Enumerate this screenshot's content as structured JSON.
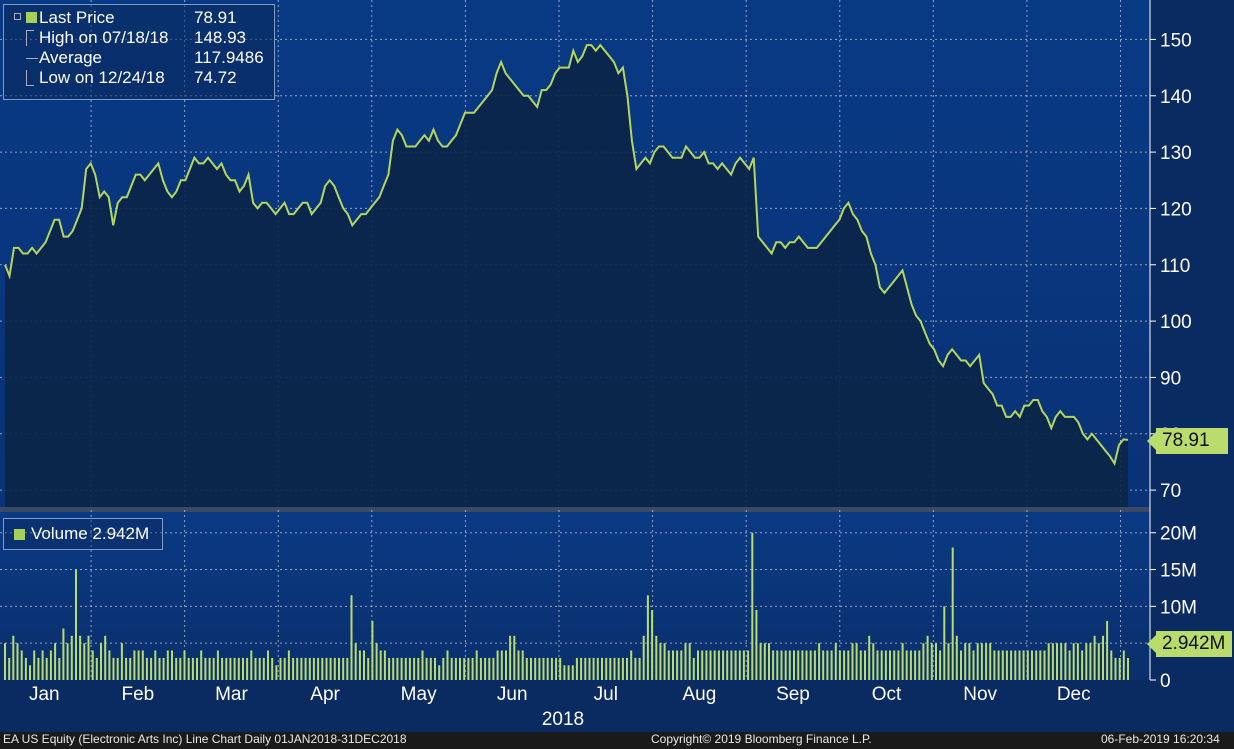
{
  "legend": {
    "last_price_label": "Last Price",
    "last_price_value": "78.91",
    "high_label": "High on 07/18/18",
    "high_value": "148.93",
    "average_label": "Average",
    "average_value": "117.9486",
    "low_label": "Low on 12/24/18",
    "low_value": "74.72"
  },
  "volume_legend": "Volume 2.942M",
  "price_tag": "78.91",
  "volume_tag": "2.942M",
  "footer": {
    "left": "EA US Equity (Electronic Arts Inc) Line Chart  Daily 01JAN2018-31DEC2018",
    "center": "Copyright© 2019 Bloomberg Finance L.P.",
    "right": "06-Feb-2019 16:20:34"
  },
  "colors": {
    "line": "#b5d65e",
    "background": "#0a2a5a",
    "fill": "#0b2548",
    "volume": "#b9dc6c"
  },
  "chart_data": [
    {
      "type": "area",
      "series": [
        {
          "name": "Last Price",
          "values": [
            110,
            108,
            113,
            113,
            112,
            112,
            113,
            112,
            113,
            114,
            116,
            118,
            118,
            115,
            115,
            116,
            118,
            120,
            127,
            128,
            126,
            122,
            123,
            122,
            117,
            121,
            122,
            122,
            124,
            126,
            126,
            125,
            126,
            127,
            128,
            125,
            123,
            122,
            123,
            125,
            125,
            127,
            129,
            128,
            128,
            129,
            128,
            127,
            128,
            126,
            125,
            125,
            123,
            124,
            126,
            121,
            120,
            121,
            121,
            120,
            119,
            120,
            121,
            119,
            119,
            120,
            121,
            121,
            119,
            120,
            121,
            124,
            125,
            124,
            122,
            120,
            119,
            117,
            118,
            119,
            119,
            120,
            121,
            122,
            124,
            126,
            132,
            134,
            133,
            131,
            131,
            131,
            132,
            133,
            132,
            134,
            132,
            131,
            131,
            132,
            133,
            135,
            137,
            137,
            137,
            138,
            139,
            140,
            141,
            144,
            146,
            144,
            143,
            142,
            141,
            140,
            140,
            139,
            138,
            141,
            141,
            142,
            144,
            145,
            145,
            145,
            148,
            146,
            147,
            149,
            149,
            148,
            149,
            148,
            147,
            146,
            144,
            145,
            140,
            132,
            127,
            128,
            129,
            128,
            130,
            131,
            131,
            130,
            129,
            129,
            129,
            131,
            130,
            129,
            129,
            130,
            128,
            128,
            127,
            128,
            127,
            126,
            128,
            129,
            128,
            127,
            129,
            115,
            114,
            113,
            112,
            114,
            114,
            113,
            114,
            114,
            115,
            114,
            113,
            113,
            113,
            114,
            115,
            116,
            117,
            118,
            120,
            121,
            119,
            118,
            116,
            115,
            112,
            110,
            106,
            105,
            106,
            107,
            108,
            109,
            106,
            103,
            101,
            100,
            98,
            96,
            95,
            93,
            92,
            94,
            95,
            94,
            93,
            93,
            92,
            93,
            94,
            89,
            88,
            87,
            85,
            85,
            83,
            83,
            84,
            83,
            85,
            85,
            86,
            86,
            84,
            83,
            81,
            83,
            84,
            83,
            83,
            83,
            82,
            80,
            79,
            80,
            79,
            78,
            77,
            76,
            74.72,
            78,
            79,
            78.91
          ]
        }
      ],
      "x_labels": [
        "Jan",
        "Feb",
        "Mar",
        "Apr",
        "May",
        "Jun",
        "Jul",
        "Aug",
        "Sep",
        "Oct",
        "Nov",
        "Dec"
      ],
      "x_title": "2018",
      "y_ticks": [
        70,
        80,
        90,
        100,
        110,
        120,
        130,
        140,
        150
      ],
      "ylim": [
        67,
        157
      ],
      "grid": true,
      "legend_position": "top-left"
    },
    {
      "type": "bar",
      "series": [
        {
          "name": "Volume",
          "values": [
            5,
            3,
            6,
            5,
            4,
            3,
            2,
            4,
            3,
            4,
            3,
            4,
            5,
            3,
            7,
            5,
            6,
            15,
            6,
            5,
            6,
            4,
            3,
            5,
            6,
            4,
            3,
            3,
            5,
            3,
            3,
            4,
            4,
            4,
            3,
            3,
            4,
            3,
            3,
            4,
            4,
            3,
            3,
            4,
            3,
            3,
            3,
            4,
            3,
            3,
            3,
            4,
            3,
            3,
            3,
            3,
            3,
            3,
            3,
            4,
            3,
            3,
            3,
            4,
            3,
            2,
            3,
            3,
            4,
            3,
            3,
            3,
            3,
            3,
            3,
            3,
            3,
            3,
            3,
            3,
            3,
            3,
            3,
            11.5,
            5,
            4,
            4,
            3,
            8,
            5,
            4,
            4,
            3,
            3,
            3,
            3,
            3,
            3,
            3,
            3,
            4,
            3,
            3,
            3,
            2,
            3,
            4,
            3,
            3,
            3,
            3,
            3,
            3,
            4,
            3,
            3,
            3,
            3,
            4,
            4,
            4,
            6,
            6,
            4,
            4,
            3,
            3,
            3,
            3,
            3,
            3,
            3,
            3,
            3,
            2,
            2,
            2,
            3,
            3,
            3,
            3,
            3,
            3,
            3,
            3,
            3,
            3,
            3,
            3,
            3,
            4,
            3,
            3,
            6,
            11.5,
            9.5,
            6,
            5,
            5,
            4,
            4,
            4,
            4,
            5,
            5,
            3,
            4,
            4,
            4,
            4,
            4,
            4,
            4,
            4,
            4,
            4,
            4,
            4,
            4,
            20,
            9.5,
            5,
            5,
            5,
            4,
            4,
            4,
            4,
            4,
            4,
            4,
            4,
            4,
            4,
            4,
            5,
            4,
            4,
            4,
            5,
            4,
            4,
            4,
            5,
            5,
            4,
            4,
            6,
            5,
            4,
            4,
            4,
            4,
            4,
            4,
            5,
            4,
            4,
            4,
            4,
            5,
            6,
            5,
            5,
            4,
            10,
            5,
            18,
            6,
            4,
            5,
            5,
            4,
            5,
            5,
            5,
            5,
            4,
            4,
            4,
            4,
            4,
            4,
            4,
            4,
            4,
            4,
            4,
            4,
            4,
            5,
            5,
            5,
            5,
            5,
            4,
            5,
            5,
            4,
            5,
            5,
            6,
            5,
            6,
            8,
            4,
            3,
            3,
            4,
            3
          ]
        }
      ],
      "y_ticks": [
        0,
        5,
        10,
        15,
        20
      ],
      "y_tick_labels": [
        "0",
        "5M",
        "10M",
        "15M",
        "20M"
      ],
      "ylim": [
        0,
        22
      ],
      "unit": "M"
    }
  ]
}
